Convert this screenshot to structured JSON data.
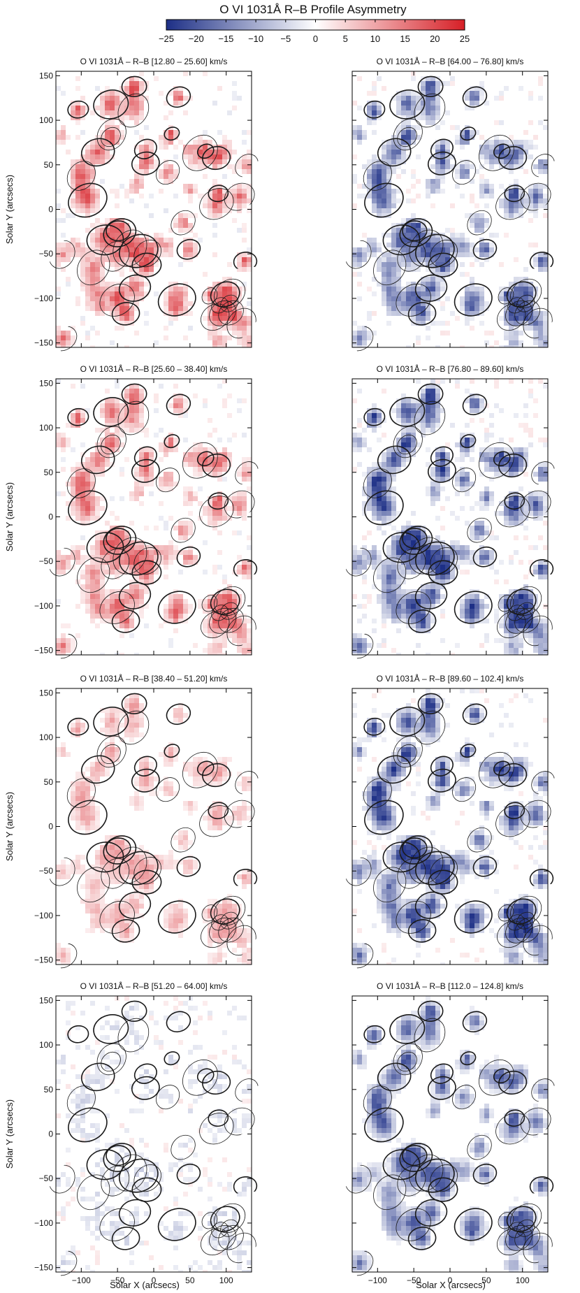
{
  "figure": {
    "title": "O VI 1031Å R–B Profile Asymmetry",
    "colorbar": {
      "range": [
        -25,
        25
      ],
      "ticks": [
        -25,
        -20,
        -15,
        -10,
        -5,
        0,
        5,
        10,
        15,
        20,
        25
      ],
      "colors": {
        "negative": "#1d2f86",
        "zero": "#ffffff",
        "positive": "#d61f26"
      }
    },
    "x_label": "Solar X (arcsecs)",
    "y_label": "Solar Y (arcsecs)"
  },
  "chart_data": {
    "type": "heatmap",
    "xlim": [
      -135,
      135
    ],
    "ylim": [
      -155,
      155
    ],
    "x_ticks": [
      -100,
      -50,
      0,
      50,
      100
    ],
    "y_ticks": [
      -150,
      -100,
      -50,
      0,
      50,
      100,
      150
    ],
    "panels": [
      {
        "title": "O VI 1031Å – R–B [12.80 – 25.60] km/s",
        "bias": 0.55,
        "saturation": 0.55
      },
      {
        "title": "O VI 1031Å – R–B [64.00 – 76.80] km/s",
        "bias": -0.6,
        "saturation": 0.55
      },
      {
        "title": "O VI 1031Å – R–B [25.60 – 38.40] km/s",
        "bias": 0.5,
        "saturation": 0.5
      },
      {
        "title": "O VI 1031Å – R–B [76.80 – 89.60] km/s",
        "bias": -0.7,
        "saturation": 0.55
      },
      {
        "title": "O VI 1031Å – R–B [38.40 – 51.20] km/s",
        "bias": 0.3,
        "saturation": 0.35
      },
      {
        "title": "O VI 1031Å – R–B [89.60 – 102.4] km/s",
        "bias": -0.7,
        "saturation": 0.5
      },
      {
        "title": "O VI 1031Å – R–B [51.20 – 64.00] km/s",
        "bias": -0.1,
        "saturation": 0.55
      },
      {
        "title": "O VI 1031Å – R–B [112.0 – 124.8] km/s",
        "bias": -0.6,
        "saturation": 0.35
      }
    ]
  }
}
